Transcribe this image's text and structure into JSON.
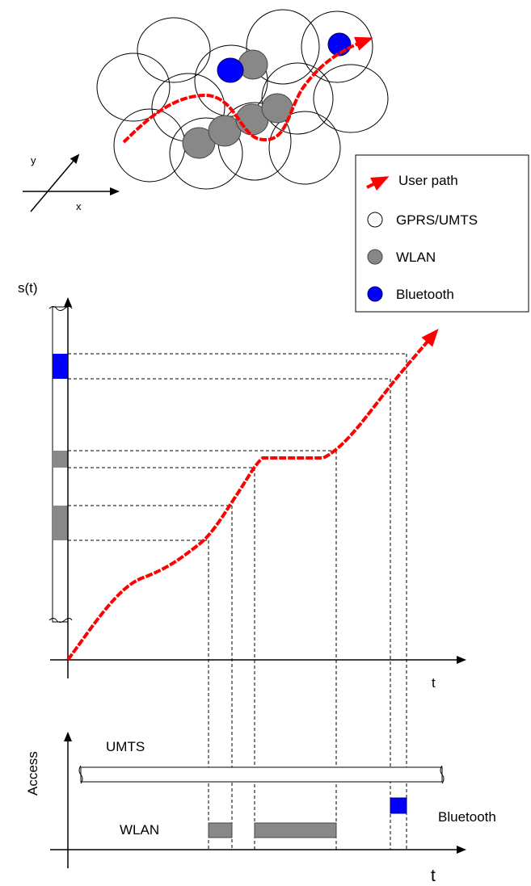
{
  "axes": {
    "map_y": "y",
    "map_x": "x",
    "position_axis": "s(t)",
    "time_axis_top": "t",
    "access_axis": "Access",
    "time_axis_bottom": "t"
  },
  "legend": {
    "items": [
      {
        "label": "User path",
        "symbol": "red-arrow"
      },
      {
        "label": "GPRS/UMTS",
        "symbol": "white-circle"
      },
      {
        "label": "WLAN",
        "symbol": "gray-circle"
      },
      {
        "label": "Bluetooth",
        "symbol": "blue-circle"
      }
    ]
  },
  "access_labels": {
    "umts": "UMTS",
    "wlan": "WLAN",
    "bluetooth": "Bluetooth"
  },
  "colors": {
    "path": "#ff0000",
    "wlan": "#888888",
    "bluetooth": "#0000ff",
    "gprs_umts": "#ffffff",
    "line": "#000000"
  }
}
